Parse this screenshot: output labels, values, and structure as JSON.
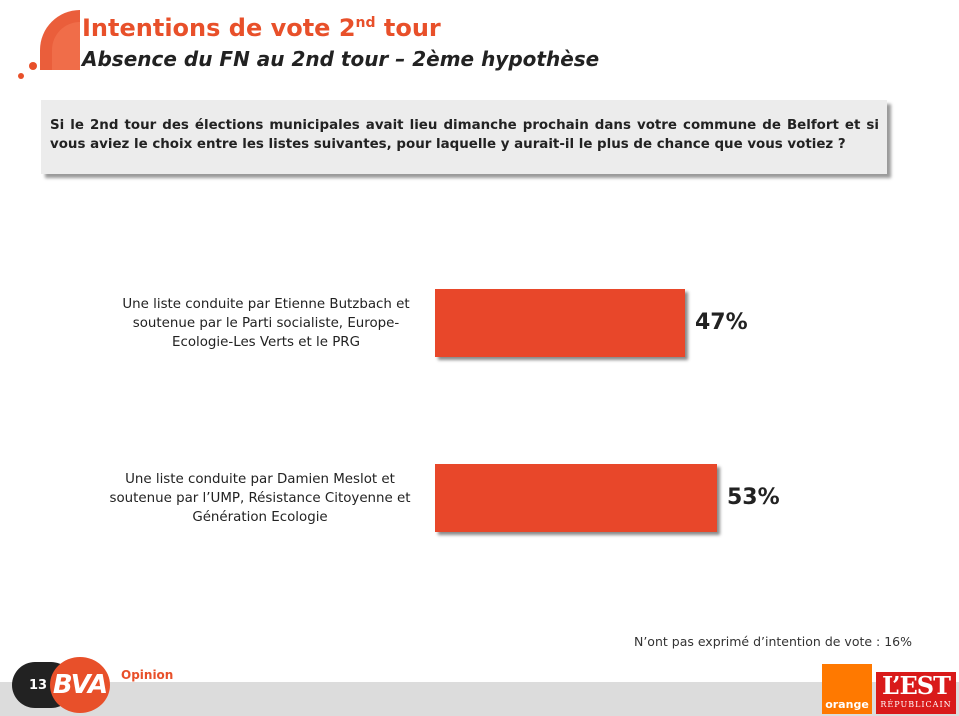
{
  "header": {
    "title_main": "Intentions de vote 2",
    "title_sup": "nd",
    "title_end": " tour",
    "subtitle": "Absence du FN au 2nd tour – 2ème hypothèse"
  },
  "question": "Si le 2nd tour des élections municipales avait lieu dimanche prochain dans votre commune de Belfort et si vous aviez le choix entre les listes suivantes, pour laquelle y aurait-il le plus de chance que vous votiez ?",
  "chart_data": {
    "type": "bar",
    "orientation": "horizontal",
    "categories": [
      "Une liste conduite par Etienne Butzbach et soutenue par le Parti socialiste, Europe-Ecologie-Les Verts et le PRG",
      "Une liste conduite par Damien Meslot et soutenue par l’UMP, Résistance Citoyenne et Génération Ecologie"
    ],
    "values": [
      47,
      53
    ],
    "value_labels": [
      "47%",
      "53%"
    ],
    "unit": "%",
    "color": "#e8472a",
    "grid": false,
    "legend": "none"
  },
  "footnote": "N’ont pas exprimé d’intention de vote : 16%",
  "footer": {
    "page_number": "13",
    "bva_text": "BVA",
    "bva_opinion": "Opinion",
    "orange_text": "orange",
    "est_main": "L’EST",
    "est_sub": "RÉPUBLICAIN"
  },
  "colors": {
    "accent": "#e8502a",
    "bar": "#e8472a",
    "orange_brand": "#ff7900",
    "est_brand": "#d91a1a"
  }
}
